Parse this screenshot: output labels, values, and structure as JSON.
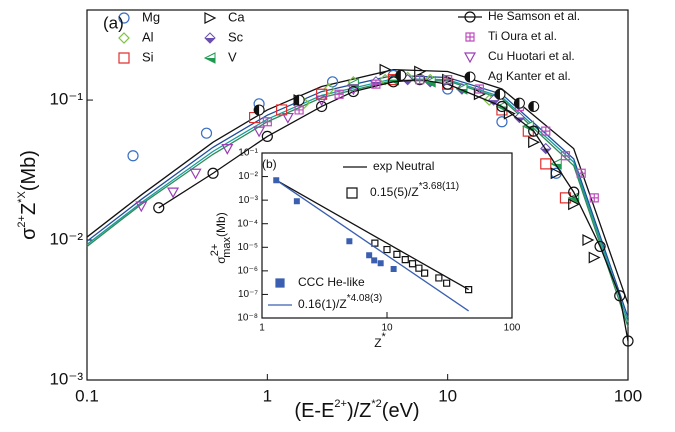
{
  "chart_data": [
    {
      "type": "scatter",
      "panel": "(a)",
      "x_label": [
        "(E-E",
        "2+",
        ")/Z",
        "*2",
        "(eV)"
      ],
      "y_label": [
        "σ",
        "2+",
        "Z",
        "*X",
        "(Mb)"
      ],
      "log_x": true,
      "log_y": true,
      "xlim": [
        0.1,
        100
      ],
      "ylim": [
        0.001,
        0.44
      ],
      "xticks": [
        0.1,
        1,
        10,
        100
      ],
      "yticks": [
        {
          "value": 0.001,
          "label": "10⁻³"
        },
        {
          "value": 0.01,
          "label": "10⁻²"
        },
        {
          "value": 0.1,
          "label": "10⁻¹"
        }
      ],
      "curves": [
        {
          "color": "#111111",
          "x": [
            0.1,
            0.2,
            0.5,
            1,
            2,
            5,
            10,
            20,
            50,
            100
          ],
          "values": [
            0.0105,
            0.021,
            0.05,
            0.085,
            0.125,
            0.165,
            0.16,
            0.12,
            0.045,
            0.0035
          ]
        },
        {
          "color": "#1f4e9c",
          "x": [
            0.1,
            0.2,
            0.5,
            1,
            2,
            5,
            10,
            20,
            50,
            100
          ],
          "values": [
            0.0098,
            0.0195,
            0.046,
            0.078,
            0.115,
            0.15,
            0.145,
            0.11,
            0.038,
            0.0028
          ]
        },
        {
          "color": "#1a9a9a",
          "x": [
            0.1,
            0.2,
            0.5,
            1,
            2,
            5,
            10,
            20,
            50,
            100
          ],
          "values": [
            0.0093,
            0.0185,
            0.043,
            0.073,
            0.108,
            0.142,
            0.14,
            0.105,
            0.036,
            0.0026
          ]
        },
        {
          "color": "#2e8b57",
          "x": [
            0.1,
            0.2,
            0.5,
            1,
            2,
            5,
            10,
            20,
            50,
            100
          ],
          "values": [
            0.009,
            0.018,
            0.041,
            0.07,
            0.104,
            0.138,
            0.137,
            0.102,
            0.034,
            0.0024
          ]
        }
      ],
      "series": [
        {
          "name": "Mg",
          "color": "#3a6fc4",
          "marker": "circle",
          "x": [
            0.18,
            0.46,
            0.9,
            2.3,
            5,
            10,
            20,
            40
          ],
          "values": [
            0.04,
            0.058,
            0.094,
            0.135,
            0.15,
            0.12,
            0.07,
            0.03
          ]
        },
        {
          "name": "Al",
          "color": "#7dc242",
          "marker": "diamond",
          "x": [
            1.6,
            2.2,
            3,
            4.5,
            6,
            8,
            12,
            17
          ],
          "values": [
            0.095,
            0.12,
            0.135,
            0.14,
            0.145,
            0.14,
            0.12,
            0.1
          ]
        },
        {
          "name": "Si",
          "color": "#e03030",
          "marker": "square",
          "x": [
            0.85,
            1.2,
            2,
            5,
            10,
            20,
            28,
            35,
            45
          ],
          "values": [
            0.075,
            0.085,
            0.11,
            0.14,
            0.13,
            0.085,
            0.06,
            0.035,
            0.02
          ]
        },
        {
          "name": "Ca",
          "color": "#111111",
          "marker": "tri-right",
          "x": [
            1.5,
            4.5,
            7,
            10,
            15,
            22,
            30,
            40,
            50,
            60,
            65
          ],
          "values": [
            0.1,
            0.165,
            0.16,
            0.14,
            0.11,
            0.08,
            0.05,
            0.03,
            0.018,
            0.01,
            0.0075
          ]
        },
        {
          "name": "Sc",
          "color": "#6a4fb0",
          "marker": "diamond-half",
          "x": [
            4,
            6,
            8,
            12,
            18,
            25,
            35
          ],
          "values": [
            0.135,
            0.14,
            0.135,
            0.12,
            0.1,
            0.075,
            0.045
          ]
        },
        {
          "name": "V",
          "color": "#1e9a50",
          "marker": "tri-left-half",
          "x": [
            3,
            5,
            8,
            12,
            20,
            28,
            40,
            50
          ],
          "values": [
            0.13,
            0.14,
            0.135,
            0.12,
            0.09,
            0.065,
            0.035,
            0.02
          ]
        },
        {
          "name": "He Samson et al.",
          "color": "#111111",
          "marker": "circle",
          "line": true,
          "x": [
            0.25,
            0.5,
            1,
            2,
            3,
            5,
            7,
            10,
            20,
            30,
            50,
            70,
            90,
            100
          ],
          "values": [
            0.017,
            0.03,
            0.055,
            0.09,
            0.115,
            0.135,
            0.14,
            0.13,
            0.09,
            0.06,
            0.022,
            0.009,
            0.004,
            0.0019
          ]
        },
        {
          "name": "Ti Oura et al.",
          "color": "#c04cc0",
          "marker": "square-plus",
          "x": [
            1,
            1.5,
            2.5,
            4,
            7,
            10,
            15,
            25,
            35,
            45,
            55,
            65
          ],
          "values": [
            0.07,
            0.085,
            0.11,
            0.13,
            0.14,
            0.14,
            0.12,
            0.09,
            0.06,
            0.04,
            0.03,
            0.02
          ]
        },
        {
          "name": "Cu Huotari et al.",
          "color": "#9a3fb5",
          "marker": "tri-down",
          "x": [
            0.2,
            0.3,
            0.4,
            0.6,
            0.9,
            1.3,
            2,
            3
          ],
          "values": [
            0.0175,
            0.022,
            0.03,
            0.045,
            0.06,
            0.075,
            0.1,
            0.12
          ]
        },
        {
          "name": "Ag Kanter et al.",
          "color": "#111111",
          "marker": "circle-half",
          "x": [
            0.9,
            1.5,
            5.5,
            19.5,
            25,
            30
          ],
          "values": [
            0.085,
            0.1,
            0.15,
            0.11,
            0.095,
            0.09
          ]
        }
      ]
    },
    {
      "type": "scatter",
      "panel": "(b)",
      "x_label": [
        "Z",
        "*"
      ],
      "y_label": [
        "σ",
        "2+",
        "max",
        "(Mb)"
      ],
      "log_x": true,
      "log_y": true,
      "xlim": [
        1,
        100
      ],
      "ylim": [
        1e-08,
        0.1
      ],
      "xticks": [
        1,
        10,
        100
      ],
      "yticks": [
        {
          "value": 1e-08,
          "label": "10⁻⁸"
        },
        {
          "value": 1e-07,
          "label": "10⁻⁷"
        },
        {
          "value": 1e-06,
          "label": "10⁻⁶"
        },
        {
          "value": 1e-05,
          "label": "10⁻⁵"
        },
        {
          "value": 0.0001,
          "label": "10⁻⁴"
        },
        {
          "value": 0.001,
          "label": "10⁻³"
        },
        {
          "value": 0.01,
          "label": "10⁻²"
        },
        {
          "value": 0.1,
          "label": "10⁻¹"
        }
      ],
      "series": [
        {
          "name": "exp Neutral",
          "color": "#111111",
          "line": true,
          "x": [
            1.3,
            45
          ],
          "values": [
            0.007,
            1.6e-07
          ]
        },
        {
          "name": [
            "0.15(5)/Z",
            "*3.68(11)"
          ],
          "color": "#111111",
          "marker": "square",
          "x": [
            8,
            10,
            12,
            14,
            16,
            18,
            20,
            26,
            30,
            45
          ],
          "values": [
            1.5e-05,
            8e-06,
            5e-06,
            3e-06,
            2e-06,
            1.3e-06,
            8e-07,
            5e-07,
            3e-07,
            1.6e-07
          ]
        },
        {
          "name": "CCC He-like",
          "color": "#3a5fb0",
          "marker": "square-filled",
          "x": [
            1.3,
            1.9,
            5,
            7.2,
            7.9,
            8.9,
            11.3
          ],
          "values": [
            0.007,
            0.0009,
            1.8e-05,
            4.6e-06,
            2.8e-06,
            2.1e-06,
            1.2e-06
          ]
        },
        {
          "name": [
            "0.16(1)/Z",
            "*4.08(3)"
          ],
          "color": "#3a5fb0",
          "line": true,
          "x": [
            1.3,
            45
          ],
          "values": [
            0.007,
            2e-08
          ]
        }
      ]
    }
  ]
}
